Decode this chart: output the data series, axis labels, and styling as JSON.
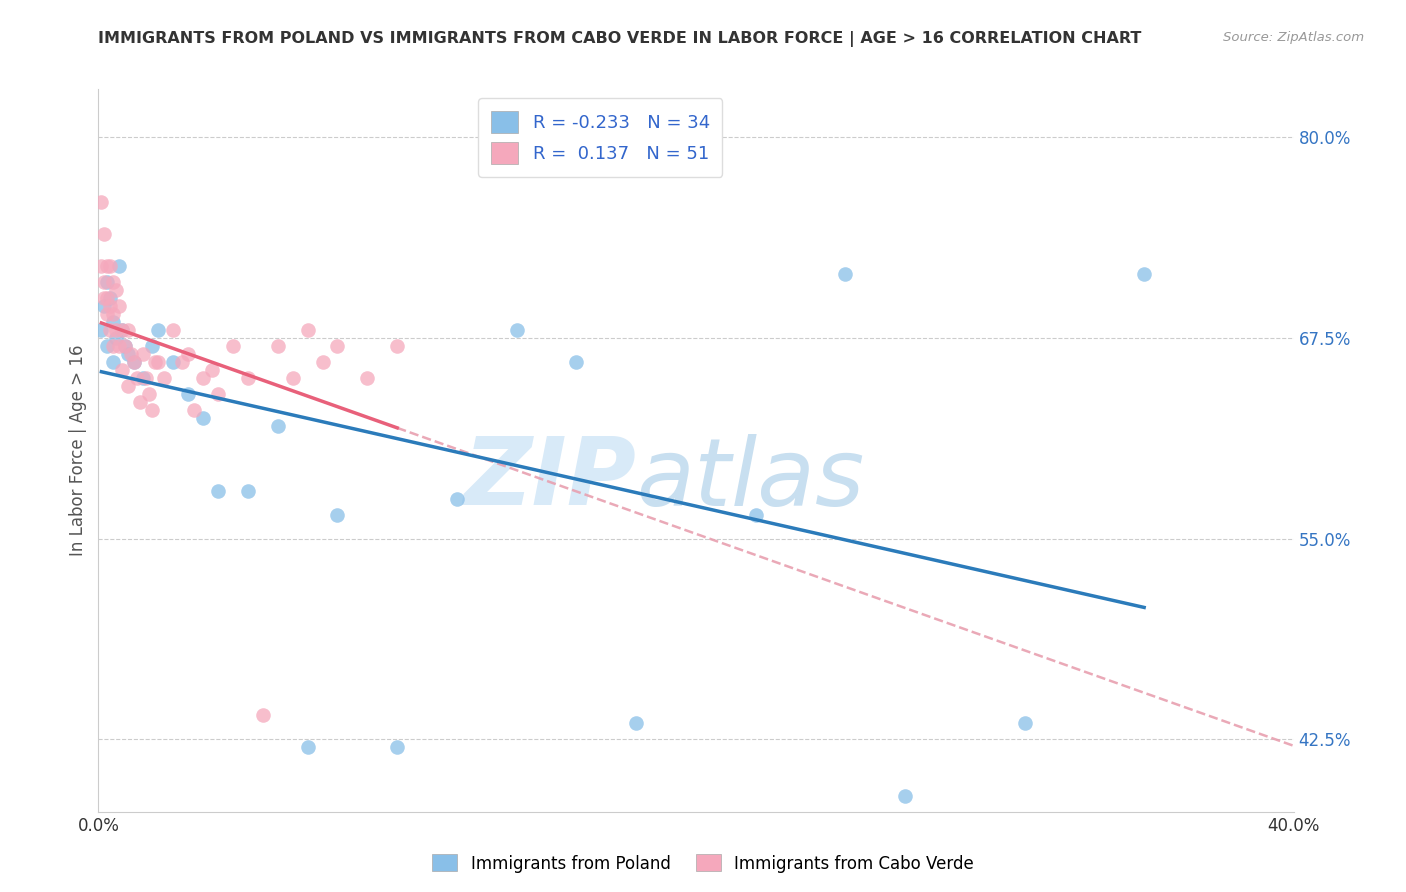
{
  "title": "IMMIGRANTS FROM POLAND VS IMMIGRANTS FROM CABO VERDE IN LABOR FORCE | AGE > 16 CORRELATION CHART",
  "source": "Source: ZipAtlas.com",
  "ylabel": "In Labor Force | Age > 16",
  "xlim": [
    0.0,
    0.4
  ],
  "ylim": [
    0.38,
    0.83
  ],
  "ytick_positions": [
    0.425,
    0.55,
    0.675,
    0.8
  ],
  "ytick_labels_right": [
    "42.5%",
    "55.0%",
    "67.5%",
    "80.0%"
  ],
  "ytick_grid_positions": [
    0.425,
    0.55,
    0.675,
    0.8
  ],
  "poland_color": "#89bfe8",
  "caboverde_color": "#f5a8bc",
  "poland_line_color": "#2b7bba",
  "caboverde_line_color": "#e8607a",
  "caboverde_dash_color": "#e8a0b0",
  "r_poland": -0.233,
  "n_poland": 34,
  "r_caboverde": 0.137,
  "n_caboverde": 51,
  "poland_x": [
    0.001,
    0.002,
    0.003,
    0.003,
    0.004,
    0.005,
    0.005,
    0.006,
    0.007,
    0.008,
    0.009,
    0.01,
    0.012,
    0.015,
    0.018,
    0.02,
    0.025,
    0.03,
    0.035,
    0.04,
    0.05,
    0.06,
    0.07,
    0.08,
    0.1,
    0.12,
    0.14,
    0.16,
    0.18,
    0.22,
    0.25,
    0.27,
    0.31,
    0.35
  ],
  "poland_y": [
    0.68,
    0.695,
    0.71,
    0.67,
    0.7,
    0.685,
    0.66,
    0.675,
    0.72,
    0.68,
    0.67,
    0.665,
    0.66,
    0.65,
    0.67,
    0.68,
    0.66,
    0.64,
    0.625,
    0.58,
    0.58,
    0.62,
    0.42,
    0.565,
    0.42,
    0.575,
    0.68,
    0.66,
    0.435,
    0.565,
    0.715,
    0.39,
    0.435,
    0.715
  ],
  "caboverde_x": [
    0.001,
    0.001,
    0.002,
    0.002,
    0.002,
    0.003,
    0.003,
    0.003,
    0.004,
    0.004,
    0.004,
    0.005,
    0.005,
    0.005,
    0.006,
    0.006,
    0.007,
    0.007,
    0.008,
    0.008,
    0.009,
    0.01,
    0.01,
    0.011,
    0.012,
    0.013,
    0.014,
    0.015,
    0.016,
    0.017,
    0.018,
    0.019,
    0.02,
    0.022,
    0.025,
    0.028,
    0.03,
    0.032,
    0.035,
    0.038,
    0.04,
    0.045,
    0.05,
    0.055,
    0.06,
    0.065,
    0.07,
    0.075,
    0.08,
    0.09,
    0.1
  ],
  "caboverde_y": [
    0.76,
    0.72,
    0.74,
    0.71,
    0.7,
    0.72,
    0.7,
    0.69,
    0.72,
    0.695,
    0.68,
    0.71,
    0.69,
    0.67,
    0.705,
    0.68,
    0.695,
    0.67,
    0.68,
    0.655,
    0.67,
    0.68,
    0.645,
    0.665,
    0.66,
    0.65,
    0.635,
    0.665,
    0.65,
    0.64,
    0.63,
    0.66,
    0.66,
    0.65,
    0.68,
    0.66,
    0.665,
    0.63,
    0.65,
    0.655,
    0.64,
    0.67,
    0.65,
    0.44,
    0.67,
    0.65,
    0.68,
    0.66,
    0.67,
    0.65,
    0.67
  ]
}
